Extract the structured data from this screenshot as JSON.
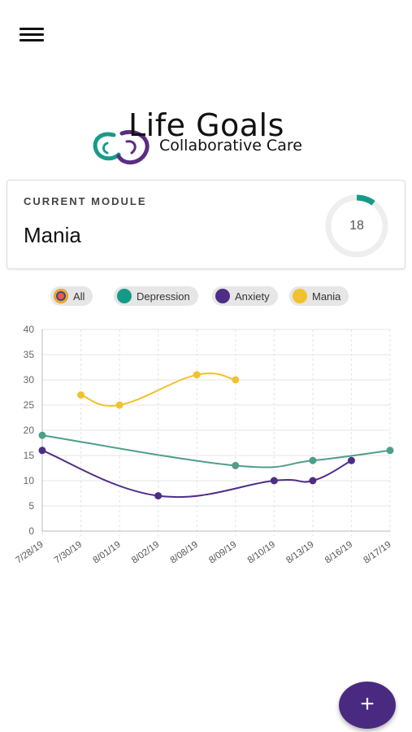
{
  "header": {
    "menu_icon": "hamburger-menu-icon",
    "logo": {
      "title": "Life Goals",
      "subtitle": "Collaborative Care",
      "colors": [
        "#1a9a8a",
        "#5a2d82"
      ]
    }
  },
  "current_module": {
    "caption": "CURRENT MODULE",
    "name": "Mania",
    "progress_value": "18",
    "progress_fraction": 0.1,
    "progress_color": "#169a88",
    "track_color": "#eeeeee"
  },
  "legend": {
    "items": [
      {
        "label": "All",
        "color": "multicolor"
      },
      {
        "label": "Depression",
        "color": "#169a88"
      },
      {
        "label": "Anxiety",
        "color": "#4e2d86"
      },
      {
        "label": "Mania",
        "color": "#f2c12e"
      }
    ]
  },
  "chart_data": {
    "type": "line",
    "categories": [
      "7/28/19",
      "7/30/19",
      "8/01/19",
      "8/02/19",
      "8/08/19",
      "8/09/19",
      "8/10/19",
      "8/13/19",
      "8/16/19",
      "8/17/19"
    ],
    "ylim": [
      0,
      40
    ],
    "yticks": [
      0,
      5,
      10,
      15,
      20,
      25,
      30,
      35,
      40
    ],
    "grid": true,
    "series": [
      {
        "name": "Depression",
        "color": "#4e9e88",
        "points": [
          [
            0,
            19
          ],
          [
            5,
            13
          ],
          [
            7,
            14
          ],
          [
            9,
            16
          ]
        ]
      },
      {
        "name": "Anxiety",
        "color": "#4e2d86",
        "points": [
          [
            0,
            16
          ],
          [
            3,
            7
          ],
          [
            6,
            10
          ],
          [
            7,
            10
          ],
          [
            8,
            14
          ]
        ]
      },
      {
        "name": "Mania",
        "color": "#f2c12e",
        "points": [
          [
            1,
            27
          ],
          [
            2,
            25
          ],
          [
            4,
            31
          ],
          [
            5,
            30
          ]
        ]
      }
    ]
  },
  "fab": {
    "label": "+",
    "icon": "plus-icon"
  }
}
